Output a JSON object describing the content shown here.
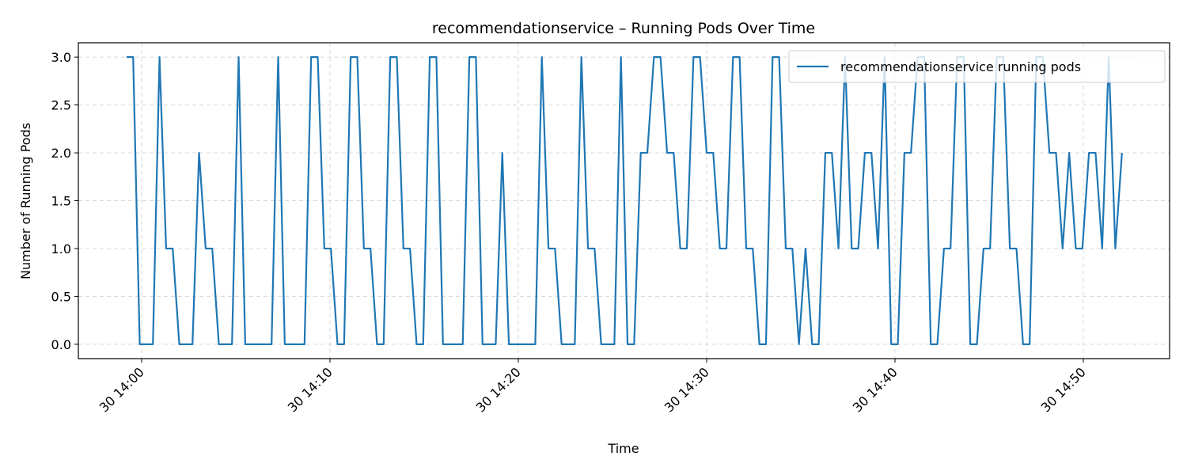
{
  "chart_data": {
    "type": "line",
    "title": "recommendationservice – Running Pods Over Time",
    "x_label": "Time",
    "y_label": "Number of Running Pods",
    "x": [
      -0.8,
      -0.45,
      -0.1,
      0.25,
      0.6,
      0.95,
      1.3,
      1.65,
      2,
      2.35,
      2.7,
      3.05,
      3.4,
      3.75,
      4.1,
      4.45,
      4.8,
      5.15,
      5.5,
      5.85,
      6.2,
      6.55,
      6.9,
      7.25,
      7.6,
      7.95,
      8.3,
      8.65,
      9,
      9.35,
      9.7,
      10.05,
      10.4,
      10.75,
      11.1,
      11.45,
      11.8,
      12.15,
      12.5,
      12.85,
      13.2,
      13.55,
      13.9,
      14.25,
      14.6,
      14.95,
      15.3,
      15.65,
      16,
      16.35,
      16.7,
      17.05,
      17.4,
      17.75,
      18.1,
      18.45,
      18.8,
      19.15,
      19.5,
      19.85,
      20.2,
      20.55,
      20.9,
      21.25,
      21.6,
      21.95,
      22.3,
      22.65,
      23,
      23.35,
      23.7,
      24.05,
      24.4,
      24.75,
      25.1,
      25.45,
      25.8,
      26.15,
      26.5,
      26.85,
      27.2,
      27.55,
      27.9,
      28.25,
      28.6,
      28.95,
      29.3,
      29.65,
      30,
      30.35,
      30.7,
      31.05,
      31.4,
      31.75,
      32.1,
      32.45,
      32.8,
      33.15,
      33.5,
      33.85,
      34.2,
      34.55,
      34.9,
      35.25,
      35.6,
      35.95,
      36.3,
      36.65,
      37,
      37.35,
      37.7,
      38.05,
      38.4,
      38.75,
      39.1,
      39.45,
      39.8,
      40.15,
      40.5,
      40.85,
      41.2,
      41.55,
      41.9,
      42.25,
      42.6,
      42.95,
      43.3,
      43.65,
      44,
      44.35,
      44.7,
      45.05,
      45.4,
      45.75,
      46.1,
      46.45,
      46.8,
      47.15,
      47.5,
      47.85,
      48.2,
      48.55,
      48.9,
      49.25,
      49.6,
      49.95,
      50.3,
      50.65,
      51,
      51.35,
      51.7,
      52.05
    ],
    "series": [
      {
        "name": "recommendationservice running pods",
        "color": "#1f77b4",
        "values": [
          3,
          3,
          0,
          0,
          0,
          3,
          1,
          1,
          0,
          0,
          0,
          2,
          1,
          1,
          0,
          0,
          0,
          3,
          0,
          0,
          0,
          0,
          0,
          3,
          0,
          0,
          0,
          0,
          3,
          3,
          1,
          1,
          0,
          0,
          3,
          3,
          1,
          1,
          0,
          0,
          3,
          3,
          1,
          1,
          0,
          0,
          3,
          3,
          0,
          0,
          0,
          0,
          3,
          3,
          0,
          0,
          0,
          2,
          0,
          0,
          0,
          0,
          0,
          3,
          1,
          1,
          0,
          0,
          0,
          3,
          1,
          1,
          0,
          0,
          0,
          3,
          0,
          0,
          2,
          2,
          3,
          3,
          2,
          2,
          1,
          1,
          3,
          3,
          2,
          2,
          1,
          1,
          3,
          3,
          1,
          1,
          0,
          0,
          3,
          3,
          1,
          1,
          0,
          1,
          0,
          0,
          2,
          2,
          1,
          3,
          1,
          1,
          2,
          2,
          1,
          3,
          0,
          0,
          2,
          2,
          3,
          3,
          0,
          0,
          1,
          1,
          3,
          3,
          0,
          0,
          1,
          1,
          3,
          3,
          1,
          1,
          0,
          0,
          3,
          3,
          2,
          2,
          1,
          2,
          1,
          1,
          2,
          2,
          1,
          3,
          1,
          2
        ]
      }
    ],
    "xlim": [
      -3.36,
      54.58
    ],
    "xticks": [
      {
        "value": 0,
        "label": "30 14:00"
      },
      {
        "value": 10,
        "label": "30 14:10"
      },
      {
        "value": 20,
        "label": "30 14:20"
      },
      {
        "value": 30,
        "label": "30 14:30"
      },
      {
        "value": 40,
        "label": "30 14:40"
      },
      {
        "value": 50,
        "label": "30 14:50"
      }
    ],
    "ylim": [
      -0.15,
      3.15
    ],
    "yticks": [
      {
        "value": 0,
        "label": "0.0"
      },
      {
        "value": 0.5,
        "label": "0.5"
      },
      {
        "value": 1,
        "label": "1.0"
      },
      {
        "value": 1.5,
        "label": "1.5"
      },
      {
        "value": 2,
        "label": "2.0"
      },
      {
        "value": 2.5,
        "label": "2.5"
      },
      {
        "value": 3,
        "label": "3.0"
      }
    ],
    "grid": true,
    "legend": "upper right"
  }
}
